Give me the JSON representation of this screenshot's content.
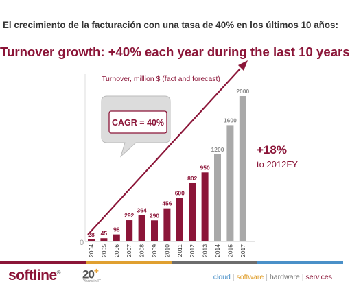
{
  "top_caption": "El crecimiento de la facturación con una tasa de 40% en los últimos 10 años:",
  "headline": "Turnover growth: +40% each year during the last 10 years",
  "chart_data": {
    "type": "bar",
    "title": "Turnover, million $ (fact and forecast)",
    "categories": [
      "2004",
      "2005",
      "2006",
      "2007",
      "2008",
      "2009",
      "2010",
      "2011",
      "2012",
      "2013",
      "2014",
      "2015",
      "2017"
    ],
    "values": [
      28,
      45,
      98,
      292,
      364,
      290,
      456,
      600,
      802,
      950,
      1200,
      1600,
      2000
    ],
    "series_kind": [
      "fact",
      "fact",
      "fact",
      "fact",
      "fact",
      "fact",
      "fact",
      "fact",
      "fact",
      "fact",
      "forecast",
      "forecast",
      "forecast"
    ],
    "y_axis_label": "0",
    "grid": false,
    "colors": {
      "fact": "#8b1538",
      "forecast": "#a9a9a9",
      "arrow": "#8b1538",
      "label_fact": "#8b1538",
      "label_forecast": "#8a8a8a"
    },
    "annotations": {
      "cagr": "CAGR = 40%",
      "growth_value": "+18%",
      "growth_sub": "to 2012FY"
    }
  },
  "logo": {
    "name": "softline",
    "reg": "®",
    "years": "20",
    "plus": "+",
    "years_sub": "Years in IT"
  },
  "services": [
    "cloud",
    "software",
    "hardware",
    "services"
  ],
  "footer_colors": [
    "#8b1538",
    "#e0a030",
    "#6d6d6d",
    "#4a90c8"
  ]
}
